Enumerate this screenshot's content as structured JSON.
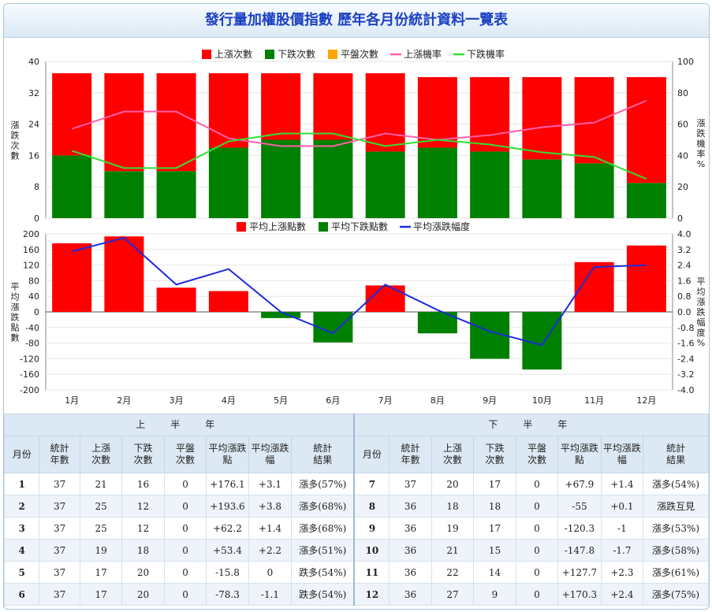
{
  "title": "發行量加權股價指數 歷年各月份統計資料一覽表",
  "colors": {
    "up": "#ff0000",
    "down": "#008000",
    "flat": "#ffa500",
    "up_rate": "#ff5fa8",
    "down_rate": "#33dd33",
    "avg_line": "#1f2ad8"
  },
  "chart_data": [
    {
      "type": "bar",
      "stacked": true,
      "categories": [
        "1月",
        "2月",
        "3月",
        "4月",
        "5月",
        "6月",
        "7月",
        "8月",
        "9月",
        "10月",
        "11月",
        "12月"
      ],
      "series": [
        {
          "name": "上漲次數",
          "values": [
            21,
            25,
            25,
            19,
            17,
            17,
            20,
            18,
            19,
            21,
            22,
            27
          ]
        },
        {
          "name": "下跌次數",
          "values": [
            16,
            12,
            12,
            18,
            20,
            20,
            17,
            18,
            17,
            15,
            14,
            9
          ]
        },
        {
          "name": "平盤次數",
          "values": [
            0,
            0,
            0,
            0,
            0,
            0,
            0,
            0,
            0,
            0,
            0,
            0
          ]
        }
      ],
      "line_series": [
        {
          "name": "上漲機率",
          "values": [
            57,
            68,
            68,
            51,
            46,
            46,
            54,
            50,
            53,
            58,
            61,
            75
          ]
        },
        {
          "name": "下跌機率",
          "values": [
            43,
            32,
            32,
            49,
            54,
            54,
            46,
            50,
            47,
            42,
            39,
            25
          ]
        }
      ],
      "ylabel": "漲跌次數",
      "y2label": "漲跌機率%",
      "ylim": [
        0,
        40
      ],
      "y2lim": [
        0,
        100
      ],
      "yticks": [
        "0",
        "8",
        "16",
        "24",
        "32",
        "40"
      ],
      "y2ticks": [
        "0",
        "20",
        "40",
        "60",
        "80",
        "100"
      ],
      "legend": "top",
      "grid": true
    },
    {
      "type": "bar",
      "categories": [
        "1月",
        "2月",
        "3月",
        "4月",
        "5月",
        "6月",
        "7月",
        "8月",
        "9月",
        "10月",
        "11月",
        "12月"
      ],
      "series": [
        {
          "name": "平均上漲點數",
          "values": [
            176.1,
            193.6,
            62.2,
            53.4,
            0,
            0,
            67.9,
            0,
            0,
            0,
            127.7,
            170.3
          ]
        },
        {
          "name": "平均下跌點數",
          "values": [
            0,
            0,
            0,
            0,
            -15.8,
            -78.3,
            0,
            -55,
            -120.3,
            -147.8,
            0,
            0
          ]
        }
      ],
      "line_series": [
        {
          "name": "平均漲跌幅度",
          "values": [
            3.1,
            3.8,
            1.4,
            2.2,
            0,
            -1.1,
            1.4,
            0.1,
            -1,
            -1.7,
            2.3,
            2.4
          ]
        }
      ],
      "ylabel": "平均漲跌點數",
      "y2label": "平均漲跌幅度%",
      "ylim": [
        -200,
        200
      ],
      "y2lim": [
        -4,
        4
      ],
      "yticks": [
        "200",
        "160",
        "120",
        "80",
        "40",
        "0",
        "-40",
        "-80",
        "-120",
        "-160",
        "-200"
      ],
      "y2ticks": [
        "4.0",
        "3.2",
        "2.4",
        "1.6",
        "0.8",
        "0.0",
        "-0.8",
        "-1.6",
        "-2.4",
        "-3.2",
        "-4.0"
      ],
      "legend": "top",
      "grid": true
    }
  ],
  "table": {
    "first_half_label": "上　半　年",
    "second_half_label": "下　半　年",
    "headers": [
      "月份",
      "統計年數",
      "上漲次數",
      "下跌次數",
      "平盤次數",
      "平均漲跌點",
      "平均漲跌幅",
      "統計結果"
    ],
    "first_half": [
      {
        "month": "1",
        "years": "37",
        "up": "21",
        "down": "16",
        "flat": "0",
        "pts": "+176.1",
        "pct": "+3.1",
        "result": "漲多(57%)"
      },
      {
        "month": "2",
        "years": "37",
        "up": "25",
        "down": "12",
        "flat": "0",
        "pts": "+193.6",
        "pct": "+3.8",
        "result": "漲多(68%)"
      },
      {
        "month": "3",
        "years": "37",
        "up": "25",
        "down": "12",
        "flat": "0",
        "pts": "+62.2",
        "pct": "+1.4",
        "result": "漲多(68%)"
      },
      {
        "month": "4",
        "years": "37",
        "up": "19",
        "down": "18",
        "flat": "0",
        "pts": "+53.4",
        "pct": "+2.2",
        "result": "漲多(51%)"
      },
      {
        "month": "5",
        "years": "37",
        "up": "17",
        "down": "20",
        "flat": "0",
        "pts": "-15.8",
        "pct": "0",
        "result": "跌多(54%)"
      },
      {
        "month": "6",
        "years": "37",
        "up": "17",
        "down": "20",
        "flat": "0",
        "pts": "-78.3",
        "pct": "-1.1",
        "result": "跌多(54%)"
      }
    ],
    "second_half": [
      {
        "month": "7",
        "years": "37",
        "up": "20",
        "down": "17",
        "flat": "0",
        "pts": "+67.9",
        "pct": "+1.4",
        "result": "漲多(54%)"
      },
      {
        "month": "8",
        "years": "36",
        "up": "18",
        "down": "18",
        "flat": "0",
        "pts": "-55",
        "pct": "+0.1",
        "result": "漲跌互見"
      },
      {
        "month": "9",
        "years": "36",
        "up": "19",
        "down": "17",
        "flat": "0",
        "pts": "-120.3",
        "pct": "-1",
        "result": "漲多(53%)"
      },
      {
        "month": "10",
        "years": "36",
        "up": "21",
        "down": "15",
        "flat": "0",
        "pts": "-147.8",
        "pct": "-1.7",
        "result": "漲多(58%)"
      },
      {
        "month": "11",
        "years": "36",
        "up": "22",
        "down": "14",
        "flat": "0",
        "pts": "+127.7",
        "pct": "+2.3",
        "result": "漲多(61%)"
      },
      {
        "month": "12",
        "years": "36",
        "up": "27",
        "down": "9",
        "flat": "0",
        "pts": "+170.3",
        "pct": "+2.4",
        "result": "漲多(75%)"
      }
    ]
  }
}
